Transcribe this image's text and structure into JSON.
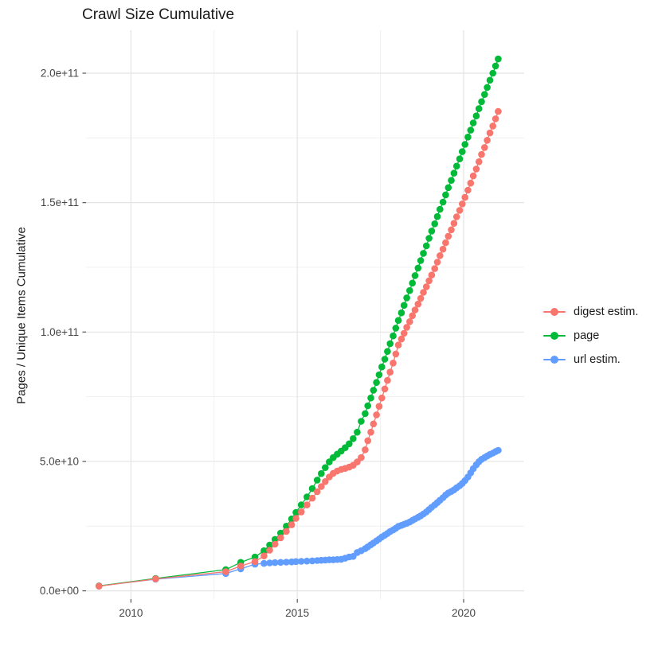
{
  "title": "Crawl Size Cumulative",
  "y_axis": {
    "label": "Pages / Unique Items Cumulative",
    "ticks": [
      {
        "value_e9": 0,
        "label": "0.0e+00"
      },
      {
        "value_e9": 50,
        "label": "5.0e+10"
      },
      {
        "value_e9": 100,
        "label": "1.0e+11"
      },
      {
        "value_e9": 150,
        "label": "1.5e+11"
      },
      {
        "value_e9": 200,
        "label": "2.0e+11"
      }
    ],
    "minor_e9": [
      25,
      75,
      125,
      175
    ]
  },
  "x_axis": {
    "ticks": [
      {
        "value": 2010,
        "label": "2010"
      },
      {
        "value": 2015,
        "label": "2015"
      },
      {
        "value": 2020,
        "label": "2020"
      }
    ],
    "minor": [
      2012.5,
      2017.5
    ]
  },
  "legend": {
    "entries": [
      {
        "name": "digest estim.",
        "color": "#F8766D"
      },
      {
        "name": "page",
        "color": "#00BA38"
      },
      {
        "name": "url estim.",
        "color": "#619CFF"
      }
    ]
  },
  "chart_data": {
    "type": "scatter",
    "title": "Crawl Size Cumulative",
    "xlabel": "",
    "ylabel": "Pages / Unique Items Cumulative",
    "value_scale": 1000000000.0,
    "xlim": [
      2008.65,
      2021.82
    ],
    "ylim_e9": [
      -3.2,
      216.6
    ],
    "grid": true,
    "legend_position": "right",
    "x": [
      2009.04,
      2010.74,
      2012.85,
      2013.3,
      2013.73,
      2014.0,
      2014.17,
      2014.33,
      2014.5,
      2014.67,
      2014.83,
      2014.96,
      2015.12,
      2015.29,
      2015.45,
      2015.6,
      2015.72,
      2015.84,
      2015.96,
      2016.08,
      2016.2,
      2016.32,
      2016.44,
      2016.56,
      2016.68,
      2016.8,
      2016.92,
      2017.04,
      2017.12,
      2017.21,
      2017.29,
      2017.38,
      2017.46,
      2017.54,
      2017.63,
      2017.71,
      2017.79,
      2017.88,
      2017.96,
      2018.04,
      2018.13,
      2018.21,
      2018.29,
      2018.38,
      2018.46,
      2018.54,
      2018.63,
      2018.71,
      2018.79,
      2018.88,
      2018.96,
      2019.04,
      2019.13,
      2019.21,
      2019.29,
      2019.38,
      2019.46,
      2019.54,
      2019.63,
      2019.71,
      2019.79,
      2019.88,
      2019.96,
      2020.04,
      2020.13,
      2020.21,
      2020.29,
      2020.38,
      2020.46,
      2020.54,
      2020.63,
      2020.71,
      2020.79,
      2020.88,
      2020.96,
      2021.04
    ],
    "series": [
      {
        "name": "digest estim.",
        "color": "#F8766D",
        "values_e9": [
          1.8,
          4.6,
          7.4,
          9.6,
          11.3,
          13.5,
          15.7,
          18.0,
          20.5,
          23.0,
          25.5,
          28.0,
          30.5,
          33.2,
          35.8,
          38.3,
          40.3,
          42.2,
          44.0,
          45.4,
          46.3,
          46.9,
          47.3,
          47.8,
          48.5,
          49.8,
          51.5,
          54.5,
          58.0,
          61.3,
          64.5,
          68.0,
          71.3,
          74.5,
          78.0,
          81.3,
          84.5,
          88.0,
          91.5,
          95.0,
          97.3,
          99.5,
          101.8,
          104.0,
          106.3,
          108.5,
          110.8,
          113.0,
          115.3,
          117.5,
          119.8,
          122.0,
          124.5,
          127.0,
          129.5,
          132.0,
          134.5,
          137.0,
          139.5,
          142.0,
          144.5,
          147.0,
          149.5,
          152.0,
          154.8,
          157.5,
          160.3,
          163.0,
          165.8,
          168.6,
          171.3,
          174.1,
          176.9,
          179.6,
          182.4,
          185.2
        ]
      },
      {
        "name": "page",
        "color": "#00BA38",
        "values_e9": [
          1.9,
          4.8,
          8.2,
          11.0,
          13.1,
          15.5,
          17.7,
          19.9,
          22.3,
          25.0,
          27.8,
          30.3,
          33.2,
          36.3,
          39.5,
          42.8,
          45.3,
          47.6,
          49.8,
          51.5,
          52.8,
          54.0,
          55.3,
          56.8,
          58.8,
          61.3,
          65.5,
          68.5,
          71.5,
          74.5,
          77.5,
          80.5,
          83.5,
          86.5,
          89.5,
          92.5,
          95.5,
          98.5,
          101.5,
          104.5,
          107.4,
          110.3,
          113.2,
          116.0,
          118.9,
          121.8,
          124.7,
          127.6,
          130.4,
          133.3,
          136.2,
          139.0,
          141.8,
          144.6,
          147.4,
          150.2,
          153.0,
          155.8,
          158.6,
          161.4,
          164.1,
          166.9,
          169.7,
          172.5,
          175.3,
          178.0,
          180.8,
          183.5,
          186.3,
          189.0,
          191.8,
          194.5,
          197.3,
          200.0,
          202.8,
          205.5
        ]
      },
      {
        "name": "url estim.",
        "color": "#619CFF",
        "values_e9": [
          1.9,
          4.5,
          6.7,
          8.5,
          10.3,
          10.6,
          10.8,
          10.9,
          11.0,
          11.1,
          11.2,
          11.3,
          11.4,
          11.5,
          11.6,
          11.7,
          11.8,
          11.9,
          12.0,
          12.0,
          12.1,
          12.2,
          12.6,
          13.1,
          13.3,
          14.8,
          15.5,
          16.3,
          17.0,
          17.8,
          18.5,
          19.3,
          20.0,
          20.8,
          21.5,
          22.2,
          22.9,
          23.5,
          24.2,
          24.9,
          25.3,
          25.7,
          26.1,
          26.6,
          27.2,
          27.8,
          28.4,
          29.0,
          29.7,
          30.5,
          31.4,
          32.3,
          33.2,
          34.1,
          35.0,
          36.0,
          37.0,
          37.8,
          38.4,
          39.0,
          39.8,
          40.6,
          41.5,
          42.6,
          44.0,
          45.6,
          47.2,
          48.7,
          49.9,
          50.8,
          51.5,
          52.1,
          52.7,
          53.2,
          53.8,
          54.3
        ]
      }
    ],
    "style": {
      "major_grid_color": "#e4e4e4",
      "minor_grid_color": "#efefef",
      "tick_color": "#555555",
      "tick_label_color": "#454545",
      "point_radius": 4.3,
      "line_width": 1.3
    }
  }
}
